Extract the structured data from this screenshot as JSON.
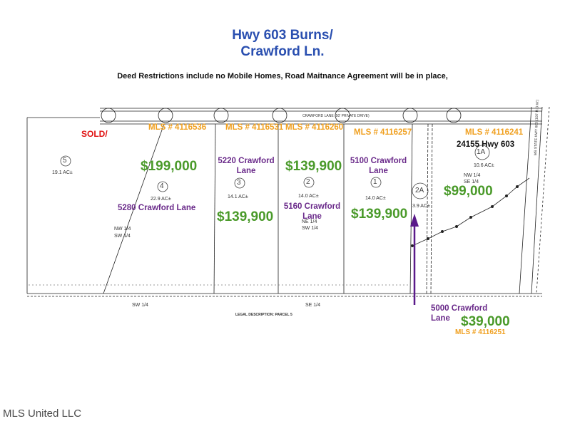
{
  "header": {
    "title_line1": "Hwy 603 Burns/",
    "title_line2": "Crawford Ln.",
    "subtitle": "Deed Restrictions include no Mobile Homes, Road Maitnance Agreement will be in place,"
  },
  "road_label": "CRAWFORD LANE (50' PRIVATE DRIVE)",
  "highway_label": "MS STATE HWY 603 (100' R.O.W.)",
  "legal_description": "LEGAL DESCRIPTION: PARCEL 5",
  "parcels": [
    {
      "num": "5",
      "acres": "19.1 AC±",
      "status": "SOLD/"
    },
    {
      "num": "4",
      "acres": "22.9 AC±",
      "mls": "MLS # 4116536",
      "price": "$199,000",
      "address": "5280 Crawford Lane"
    },
    {
      "num": "3",
      "acres": "14.1 AC±",
      "mls": "MLS # 4116531",
      "price": "$139,900",
      "address_l1": "5220 Crawford",
      "address_l2": "Lane"
    },
    {
      "num": "2",
      "acres": "14.0 AC±",
      "mls": "MLS # 4116260",
      "price": "$139,900",
      "address_l1": "5160 Crawford",
      "address_l2": "Lane"
    },
    {
      "num": "1",
      "acres": "14.0 AC±",
      "mls": "MLS # 4116257",
      "price": "$139,900",
      "address_l1": "5100 Crawford",
      "address_l2": "Lane"
    },
    {
      "num": "2A",
      "acres": "3.9 AC±",
      "mls": "MLS # 4116251",
      "price": "$39,000",
      "address_l1": "5000 Crawford",
      "address_l2": "Lane"
    },
    {
      "num": "1A",
      "acres": "10.6 AC±",
      "mls": "MLS # 4116241",
      "price": "$99,000",
      "address": "24155 Hwy 603"
    }
  ],
  "quarter_labels": {
    "nw_sw": [
      "NW 1/4",
      "SW 1/4"
    ],
    "ne_sw": [
      "NE 1/4",
      "SW 1/4"
    ],
    "nw_se": [
      "NW 1/4",
      "SE 1/4"
    ],
    "sw_bottom": "SW 1/4",
    "se_bottom": "SE 1/4"
  },
  "watermark": "MLS United LLC",
  "colors": {
    "title": "#2a4fb0",
    "mls": "#f0a020",
    "price": "#4a9a2a",
    "address": "#6a2a8a",
    "sold": "#e01010",
    "arrow": "#5a1a8a"
  }
}
